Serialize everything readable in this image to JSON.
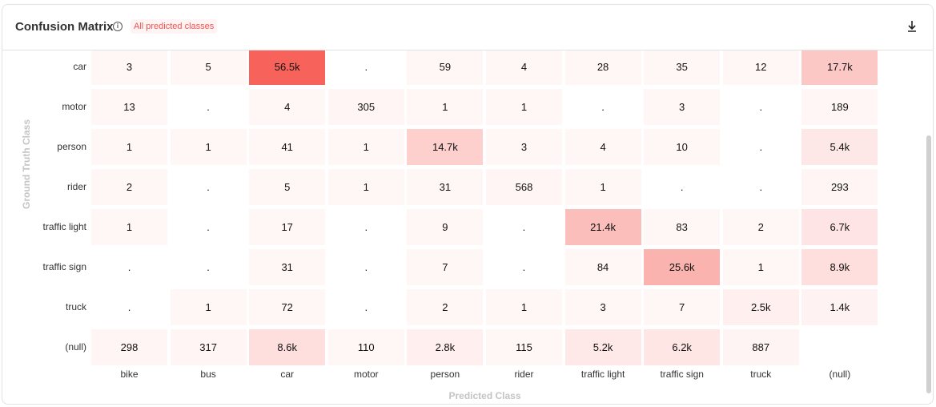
{
  "header": {
    "title": "Confusion Matrix",
    "badge": "All predicted classes",
    "info_icon": "info-icon",
    "download_icon": "download-icon"
  },
  "colors": {
    "max": "#f7625a",
    "min": "#fff6f6",
    "badge_text": "#ef5350",
    "axis_label": "#c4c4c4"
  },
  "chart_data": {
    "type": "heatmap",
    "xlabel": "Predicted Class",
    "ylabel": "Ground Truth Class",
    "columns": [
      "bike",
      "bus",
      "car",
      "motor",
      "person",
      "rider",
      "traffic light",
      "traffic sign",
      "truck",
      "(null)"
    ],
    "rows": [
      "car",
      "motor",
      "person",
      "rider",
      "traffic light",
      "traffic sign",
      "truck",
      "(null)"
    ],
    "values": [
      [
        "3",
        "5",
        "56.5k",
        ".",
        "59",
        "4",
        "28",
        "35",
        "12",
        "17.7k"
      ],
      [
        "13",
        ".",
        "4",
        "305",
        "1",
        "1",
        ".",
        "3",
        ".",
        "189"
      ],
      [
        "1",
        "1",
        "41",
        "1",
        "14.7k",
        "3",
        "4",
        "10",
        ".",
        "5.4k"
      ],
      [
        "2",
        ".",
        "5",
        "1",
        "31",
        "568",
        "1",
        ".",
        ".",
        "293"
      ],
      [
        "1",
        ".",
        "17",
        ".",
        "9",
        ".",
        "21.4k",
        "83",
        "2",
        "6.7k"
      ],
      [
        ".",
        ".",
        "31",
        ".",
        "7",
        ".",
        "84",
        "25.6k",
        "1",
        "8.9k"
      ],
      [
        ".",
        "1",
        "72",
        ".",
        "2",
        "1",
        "3",
        "7",
        "2.5k",
        "1.4k"
      ],
      [
        "298",
        "317",
        "8.6k",
        "110",
        "2.8k",
        "115",
        "5.2k",
        "6.2k",
        "887",
        ""
      ]
    ]
  }
}
